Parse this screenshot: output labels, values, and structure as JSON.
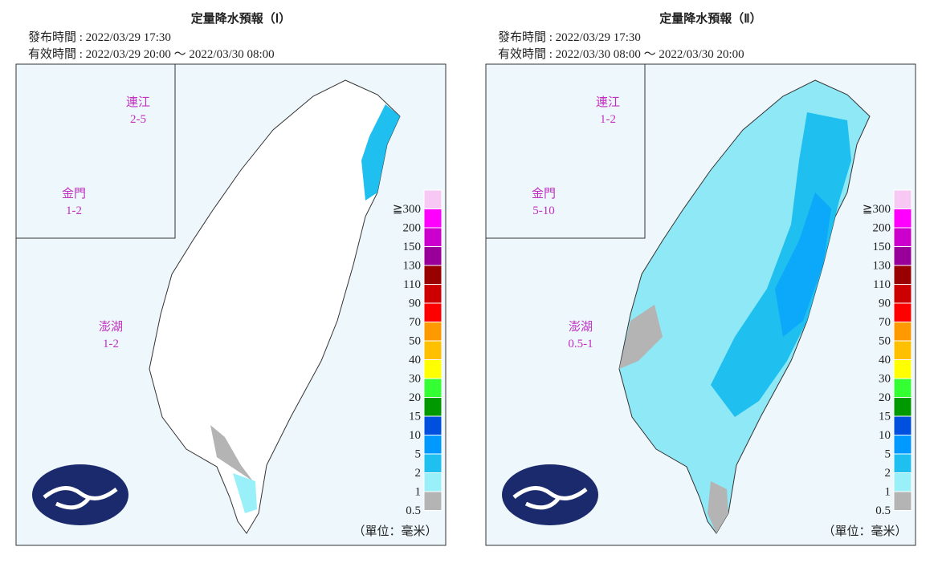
{
  "panels": [
    {
      "title": "定量降水預報（Ⅰ）",
      "issued": "發布時間 : 2022/03/29 17:30",
      "valid": "有效時間 : 2022/03/29 20:00 ～ 2022/03/30 08:00",
      "islands": [
        {
          "name": "連江",
          "range": "2-5"
        },
        {
          "name": "金門",
          "range": "1-2"
        },
        {
          "name": "澎湖",
          "range": "1-2"
        }
      ]
    },
    {
      "title": "定量降水預報（Ⅱ）",
      "issued": "發布時間 : 2022/03/29 17:30",
      "valid": "有效時間 : 2022/03/30 08:00 ～ 2022/03/30 20:00",
      "islands": [
        {
          "name": "連江",
          "range": "1-2"
        },
        {
          "name": "金門",
          "range": "5-10"
        },
        {
          "name": "澎湖",
          "range": "0.5-1"
        }
      ]
    }
  ],
  "legend": {
    "labels": [
      "≧300",
      "200",
      "150",
      "130",
      "110",
      "90",
      "70",
      "50",
      "40",
      "30",
      "20",
      "15",
      "10",
      "5",
      "2",
      "1",
      "0.5"
    ],
    "colors": [
      "#f8c8f4",
      "#ff00ff",
      "#cc00cc",
      "#990099",
      "#990000",
      "#cc0000",
      "#ff0000",
      "#ff9900",
      "#ffc000",
      "#ffff00",
      "#33ff33",
      "#009900",
      "#0050e0",
      "#0099ff",
      "#1fbff0",
      "#9af0f8",
      "#b4b4b4"
    ]
  },
  "unit": "（單位：毫米）"
}
